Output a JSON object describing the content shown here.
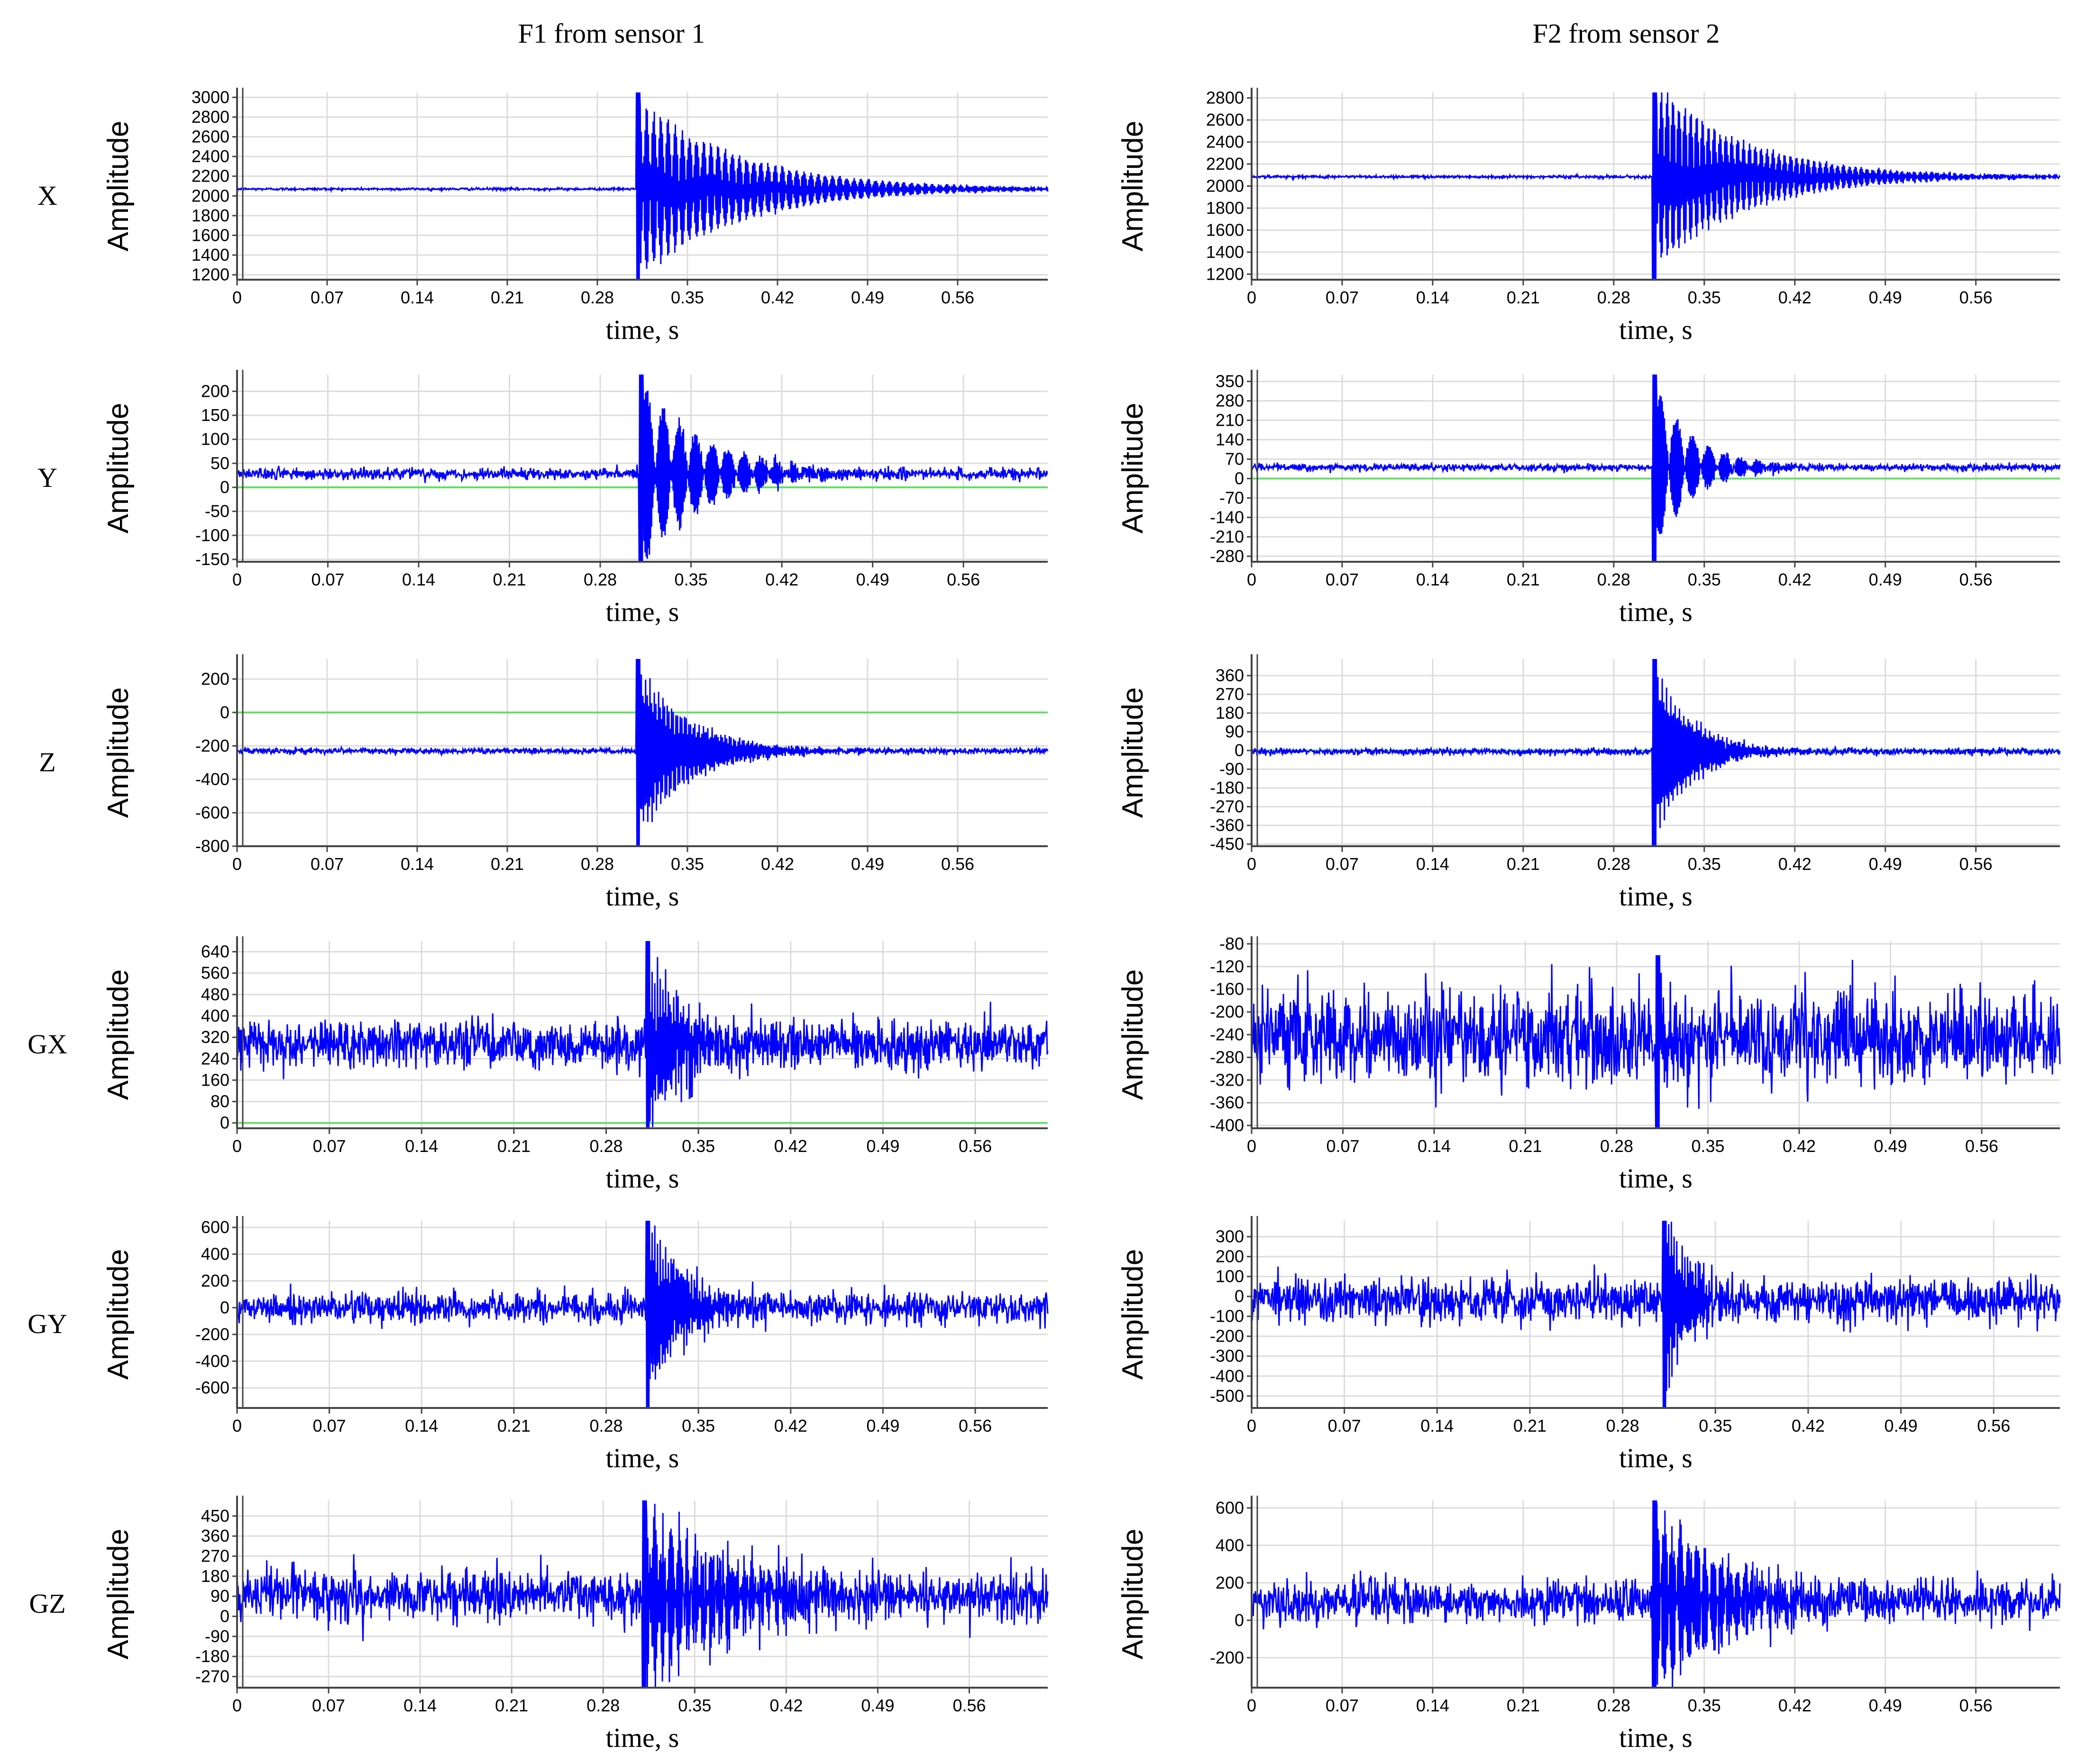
{
  "figure": {
    "col_titles": [
      "F1 from sensor 1",
      "F2 from sensor 2"
    ],
    "row_labels": [
      "X",
      "Y",
      "Z",
      "GX",
      "GY",
      "GZ"
    ]
  },
  "chart_data": [
    {
      "type": "line",
      "sensor": "F1 from sensor 1",
      "axis": "X",
      "ylabel": "Amplitude",
      "xlabel": "time, s",
      "xlim": [
        0,
        0.63
      ],
      "ylim": [
        1150,
        3050
      ],
      "xticks": [
        "0",
        "0.07",
        "0.14",
        "0.21",
        "0.28",
        "0.35",
        "0.42",
        "0.49",
        "0.56"
      ],
      "yticks": [
        "1200",
        "1400",
        "1600",
        "1800",
        "2000",
        "2200",
        "2400",
        "2600",
        "2800",
        "3000"
      ],
      "baseline": null,
      "signal": {
        "mean": 2070,
        "noise": 6,
        "impact_time": 0.31,
        "peak_up": 3050,
        "peak_down": 1150,
        "decay_s": 0.08,
        "osc_hz": 90,
        "line_color": "#0000ff"
      }
    },
    {
      "type": "line",
      "sensor": "F2 from sensor 2",
      "axis": "X",
      "ylabel": "Amplitude",
      "xlabel": "time, s",
      "xlim": [
        0,
        0.625
      ],
      "ylim": [
        1150,
        2850
      ],
      "xticks": [
        "0",
        "0.07",
        "0.14",
        "0.21",
        "0.28",
        "0.35",
        "0.42",
        "0.49",
        "0.56"
      ],
      "yticks": [
        "1200",
        "1400",
        "1600",
        "1800",
        "2000",
        "2200",
        "2400",
        "2600",
        "2800"
      ],
      "baseline": null,
      "signal": {
        "mean": 2085,
        "noise": 6,
        "impact_time": 0.31,
        "peak_up": 2850,
        "peak_down": 1150,
        "decay_s": 0.07,
        "osc_hz": 110,
        "line_color": "#0000ff"
      }
    },
    {
      "type": "line",
      "sensor": "F1 from sensor 1",
      "axis": "Y",
      "ylabel": "Amplitude",
      "xlabel": "time, s",
      "xlim": [
        0,
        0.625
      ],
      "ylim": [
        -155,
        235
      ],
      "xticks": [
        "0",
        "0.07",
        "0.14",
        "0.21",
        "0.28",
        "0.35",
        "0.42",
        "0.49",
        "0.56"
      ],
      "yticks": [
        "-150",
        "-100",
        "-50",
        "0",
        "50",
        "100",
        "150",
        "200"
      ],
      "baseline": 0,
      "signal": {
        "mean": 28,
        "noise": 6,
        "impact_time": 0.31,
        "peak_up": 235,
        "peak_down": -155,
        "decay_s": 0.05,
        "osc_hz": 40,
        "line_color": "#0000ff"
      }
    },
    {
      "type": "line",
      "sensor": "F2 from sensor 2",
      "axis": "Y",
      "ylabel": "Amplitude",
      "xlabel": "time, s",
      "xlim": [
        0,
        0.625
      ],
      "ylim": [
        -300,
        375
      ],
      "xticks": [
        "0",
        "0.07",
        "0.14",
        "0.21",
        "0.28",
        "0.35",
        "0.42",
        "0.49",
        "0.56"
      ],
      "yticks": [
        "-280",
        "-210",
        "-140",
        "-70",
        "0",
        "70",
        "140",
        "210",
        "280",
        "350"
      ],
      "baseline": 0,
      "signal": {
        "mean": 40,
        "noise": 6,
        "impact_time": 0.31,
        "peak_up": 375,
        "peak_down": -300,
        "decay_s": 0.03,
        "osc_hz": 40,
        "line_color": "#0000ff"
      }
    },
    {
      "type": "line",
      "sensor": "F1 from sensor 1",
      "axis": "Z",
      "ylabel": "Amplitude",
      "xlabel": "time, s",
      "xlim": [
        0,
        0.63
      ],
      "ylim": [
        -800,
        320
      ],
      "xticks": [
        "0",
        "0.07",
        "0.14",
        "0.21",
        "0.28",
        "0.35",
        "0.42",
        "0.49",
        "0.56"
      ],
      "yticks": [
        "-800",
        "-600",
        "-400",
        "-200",
        "0",
        "200"
      ],
      "baseline": 0,
      "signal": {
        "mean": -230,
        "noise": 8,
        "impact_time": 0.31,
        "peak_up": 320,
        "peak_down": -800,
        "decay_s": 0.04,
        "osc_hz": 300,
        "line_color": "#0000ff"
      }
    },
    {
      "type": "line",
      "sensor": "F2 from sensor 2",
      "axis": "Z",
      "ylabel": "Amplitude",
      "xlabel": "time, s",
      "xlim": [
        0,
        0.625
      ],
      "ylim": [
        -460,
        440
      ],
      "xticks": [
        "0",
        "0.07",
        "0.14",
        "0.21",
        "0.28",
        "0.35",
        "0.42",
        "0.49",
        "0.56"
      ],
      "yticks": [
        "-450",
        "-360",
        "-270",
        "-180",
        "-90",
        "0",
        "90",
        "180",
        "270",
        "360"
      ],
      "baseline": 0,
      "signal": {
        "mean": -5,
        "noise": 8,
        "impact_time": 0.31,
        "peak_up": 440,
        "peak_down": -460,
        "decay_s": 0.03,
        "osc_hz": 300,
        "line_color": "#0000ff"
      }
    },
    {
      "type": "line",
      "sensor": "F1 from sensor 1",
      "axis": "GX",
      "ylabel": "Amplitude",
      "xlabel": "time, s",
      "xlim": [
        0,
        0.615
      ],
      "ylim": [
        -20,
        680
      ],
      "xticks": [
        "0",
        "0.07",
        "0.14",
        "0.21",
        "0.28",
        "0.35",
        "0.42",
        "0.49",
        "0.56"
      ],
      "yticks": [
        "0",
        "80",
        "160",
        "240",
        "320",
        "400",
        "480",
        "560",
        "640"
      ],
      "baseline": 0,
      "signal": {
        "mean": 295,
        "noise": 45,
        "impact_time": 0.31,
        "peak_up": 680,
        "peak_down": -20,
        "decay_s": 0.03,
        "osc_hz": 250,
        "line_color": "#0000ff"
      }
    },
    {
      "type": "line",
      "sensor": "F2 from sensor 2",
      "axis": "GX",
      "ylabel": "Amplitude",
      "xlabel": "time, s",
      "xlim": [
        0,
        0.62
      ],
      "ylim": [
        -405,
        -75
      ],
      "xticks": [
        "0",
        "0.07",
        "0.14",
        "0.21",
        "0.28",
        "0.35",
        "0.42",
        "0.49",
        "0.56"
      ],
      "yticks": [
        "-400",
        "-360",
        "-320",
        "-280",
        "-240",
        "-200",
        "-160",
        "-120",
        "-80"
      ],
      "baseline": null,
      "signal": {
        "mean": -245,
        "noise": 40,
        "impact_time": 0.31,
        "peak_up": -100,
        "peak_down": -405,
        "decay_s": 0.01,
        "osc_hz": 250,
        "line_color": "#0000ff"
      }
    },
    {
      "type": "line",
      "sensor": "F1 from sensor 1",
      "axis": "GY",
      "ylabel": "Amplitude",
      "xlabel": "time, s",
      "xlim": [
        0,
        0.615
      ],
      "ylim": [
        -750,
        650
      ],
      "xticks": [
        "0",
        "0.07",
        "0.14",
        "0.21",
        "0.28",
        "0.35",
        "0.42",
        "0.49",
        "0.56"
      ],
      "yticks": [
        "-600",
        "-400",
        "-200",
        "0",
        "200",
        "400",
        "600"
      ],
      "baseline": null,
      "signal": {
        "mean": 0,
        "noise": 55,
        "impact_time": 0.31,
        "peak_up": 650,
        "peak_down": -750,
        "decay_s": 0.03,
        "osc_hz": 250,
        "line_color": "#0000ff"
      }
    },
    {
      "type": "line",
      "sensor": "F2 from sensor 2",
      "axis": "GY",
      "ylabel": "Amplitude",
      "xlabel": "time, s",
      "xlim": [
        0,
        0.61
      ],
      "ylim": [
        -560,
        380
      ],
      "xticks": [
        "0",
        "0.07",
        "0.14",
        "0.21",
        "0.28",
        "0.35",
        "0.42",
        "0.49",
        "0.56"
      ],
      "yticks": [
        "-500",
        "-400",
        "-300",
        "-200",
        "-100",
        "0",
        "100",
        "200",
        "300"
      ],
      "baseline": null,
      "signal": {
        "mean": -20,
        "noise": 55,
        "impact_time": 0.31,
        "peak_up": 380,
        "peak_down": -560,
        "decay_s": 0.02,
        "osc_hz": 250,
        "line_color": "#0000ff"
      }
    },
    {
      "type": "line",
      "sensor": "F1 from sensor 1",
      "axis": "GZ",
      "ylabel": "Amplitude",
      "xlabel": "time, s",
      "xlim": [
        0,
        0.62
      ],
      "ylim": [
        -320,
        520
      ],
      "xticks": [
        "0",
        "0.07",
        "0.14",
        "0.21",
        "0.28",
        "0.35",
        "0.42",
        "0.49",
        "0.56"
      ],
      "yticks": [
        "-270",
        "-180",
        "-90",
        "0",
        "90",
        "180",
        "270",
        "360",
        "450"
      ],
      "baseline": null,
      "signal": {
        "mean": 90,
        "noise": 55,
        "impact_time": 0.31,
        "peak_up": 520,
        "peak_down": -320,
        "decay_s": 0.07,
        "osc_hz": 80,
        "line_color": "#0000ff"
      }
    },
    {
      "type": "line",
      "sensor": "F2 from sensor 2",
      "axis": "GZ",
      "ylabel": "Amplitude",
      "xlabel": "time, s",
      "xlim": [
        0,
        0.625
      ],
      "ylim": [
        -360,
        640
      ],
      "xticks": [
        "0",
        "0.07",
        "0.14",
        "0.21",
        "0.28",
        "0.35",
        "0.42",
        "0.49",
        "0.56"
      ],
      "yticks": [
        "-200",
        "0",
        "200",
        "400",
        "600"
      ],
      "baseline": null,
      "signal": {
        "mean": 100,
        "noise": 55,
        "impact_time": 0.31,
        "peak_up": 640,
        "peak_down": -360,
        "decay_s": 0.06,
        "osc_hz": 80,
        "line_color": "#0000ff"
      }
    }
  ]
}
